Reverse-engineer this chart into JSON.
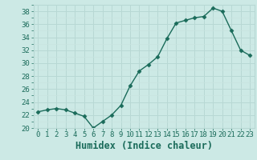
{
  "xlabel": "Humidex (Indice chaleur)",
  "x": [
    0,
    1,
    2,
    3,
    4,
    5,
    6,
    7,
    8,
    9,
    10,
    11,
    12,
    13,
    14,
    15,
    16,
    17,
    18,
    19,
    20,
    21,
    22,
    23
  ],
  "y": [
    22.5,
    22.8,
    23.0,
    22.8,
    22.3,
    21.8,
    20.0,
    21.0,
    22.0,
    23.5,
    26.5,
    28.8,
    29.8,
    31.0,
    33.8,
    36.2,
    36.6,
    37.0,
    37.2,
    38.5,
    38.0,
    35.0,
    32.0,
    31.2
  ],
  "line_color": "#1a6b5a",
  "marker": "D",
  "marker_size": 2.5,
  "bg_color": "#cce9e5",
  "grid_color_major": "#b8d8d4",
  "grid_color_minor": "#c8e4e0",
  "text_color": "#1a6b5a",
  "ylim": [
    20,
    39
  ],
  "yticks": [
    20,
    22,
    24,
    26,
    28,
    30,
    32,
    34,
    36,
    38
  ],
  "tick_fontsize": 6.5,
  "xlabel_fontsize": 8.5,
  "linewidth": 1.0
}
